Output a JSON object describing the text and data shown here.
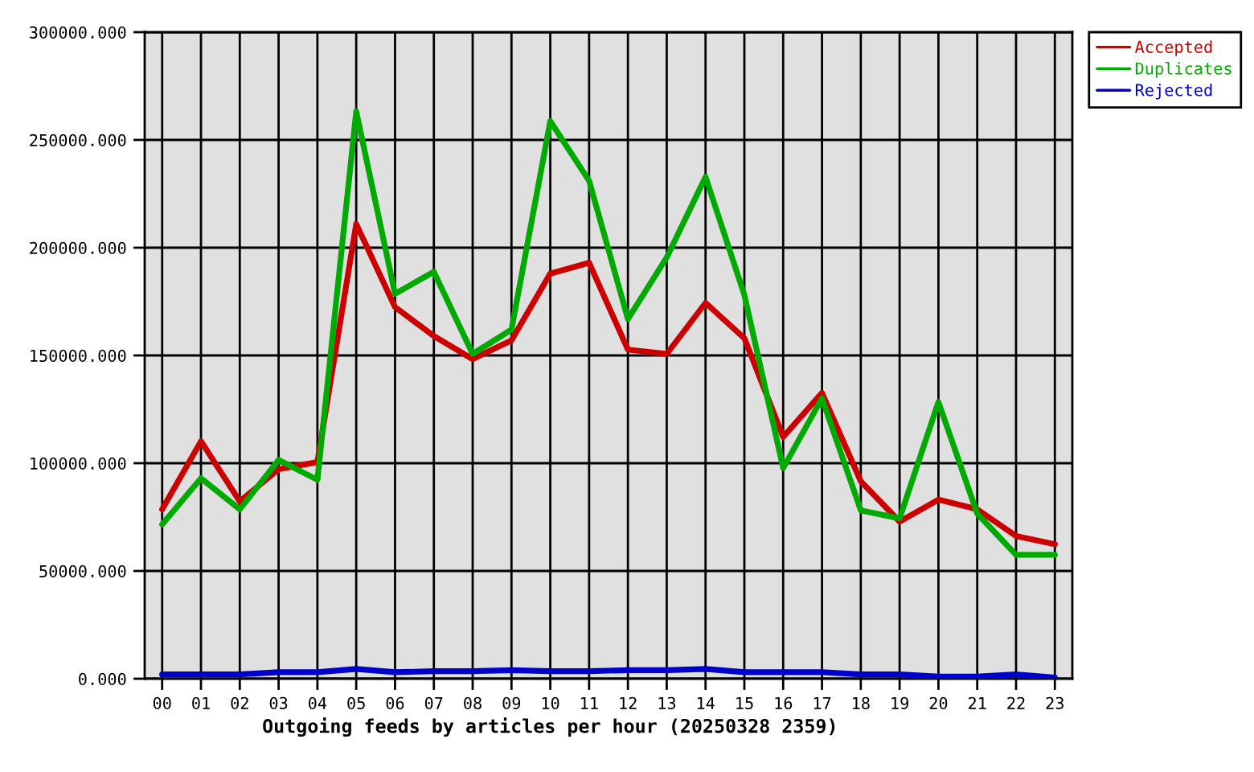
{
  "chart_data": {
    "type": "line",
    "xlabel": "Outgoing feeds by articles per hour (20250328 2359)",
    "categories": [
      "00",
      "01",
      "02",
      "03",
      "04",
      "05",
      "06",
      "07",
      "08",
      "09",
      "10",
      "11",
      "12",
      "13",
      "14",
      "15",
      "16",
      "17",
      "18",
      "19",
      "20",
      "21",
      "22",
      "23"
    ],
    "series": [
      {
        "name": "Accepted",
        "color": "#cc0000",
        "values": [
          78600,
          110200,
          82300,
          97200,
          100500,
          211000,
          172400,
          159000,
          148300,
          157000,
          188000,
          193000,
          152700,
          150700,
          174400,
          158000,
          112200,
          132600,
          91600,
          72900,
          83100,
          78600,
          66200,
          62400
        ]
      },
      {
        "name": "Duplicates",
        "color": "#00aa00",
        "values": [
          71600,
          93000,
          78600,
          101500,
          92300,
          263200,
          178600,
          188800,
          150700,
          162000,
          258700,
          231100,
          166900,
          195500,
          232800,
          178100,
          97800,
          130100,
          78100,
          74400,
          128400,
          76600,
          57500,
          57500
        ]
      },
      {
        "name": "Rejected",
        "color": "#0000cc",
        "values": [
          2000,
          2000,
          2000,
          3000,
          3000,
          4500,
          3000,
          3500,
          3500,
          4000,
          3500,
          3500,
          4000,
          4000,
          4500,
          3000,
          3000,
          3000,
          2000,
          2000,
          1000,
          1000,
          2000,
          500
        ]
      }
    ],
    "ylim": [
      0,
      300000
    ],
    "yticks": [
      {
        "value": 0,
        "label": "0.000"
      },
      {
        "value": 50000,
        "label": "50000.000"
      },
      {
        "value": 100000,
        "label": "100000.000"
      },
      {
        "value": 150000,
        "label": "150000.000"
      },
      {
        "value": 200000,
        "label": "200000.000"
      },
      {
        "value": 250000,
        "label": "250000.000"
      },
      {
        "value": 300000,
        "label": "300000.000"
      }
    ],
    "grid": true,
    "legend": "top right"
  }
}
